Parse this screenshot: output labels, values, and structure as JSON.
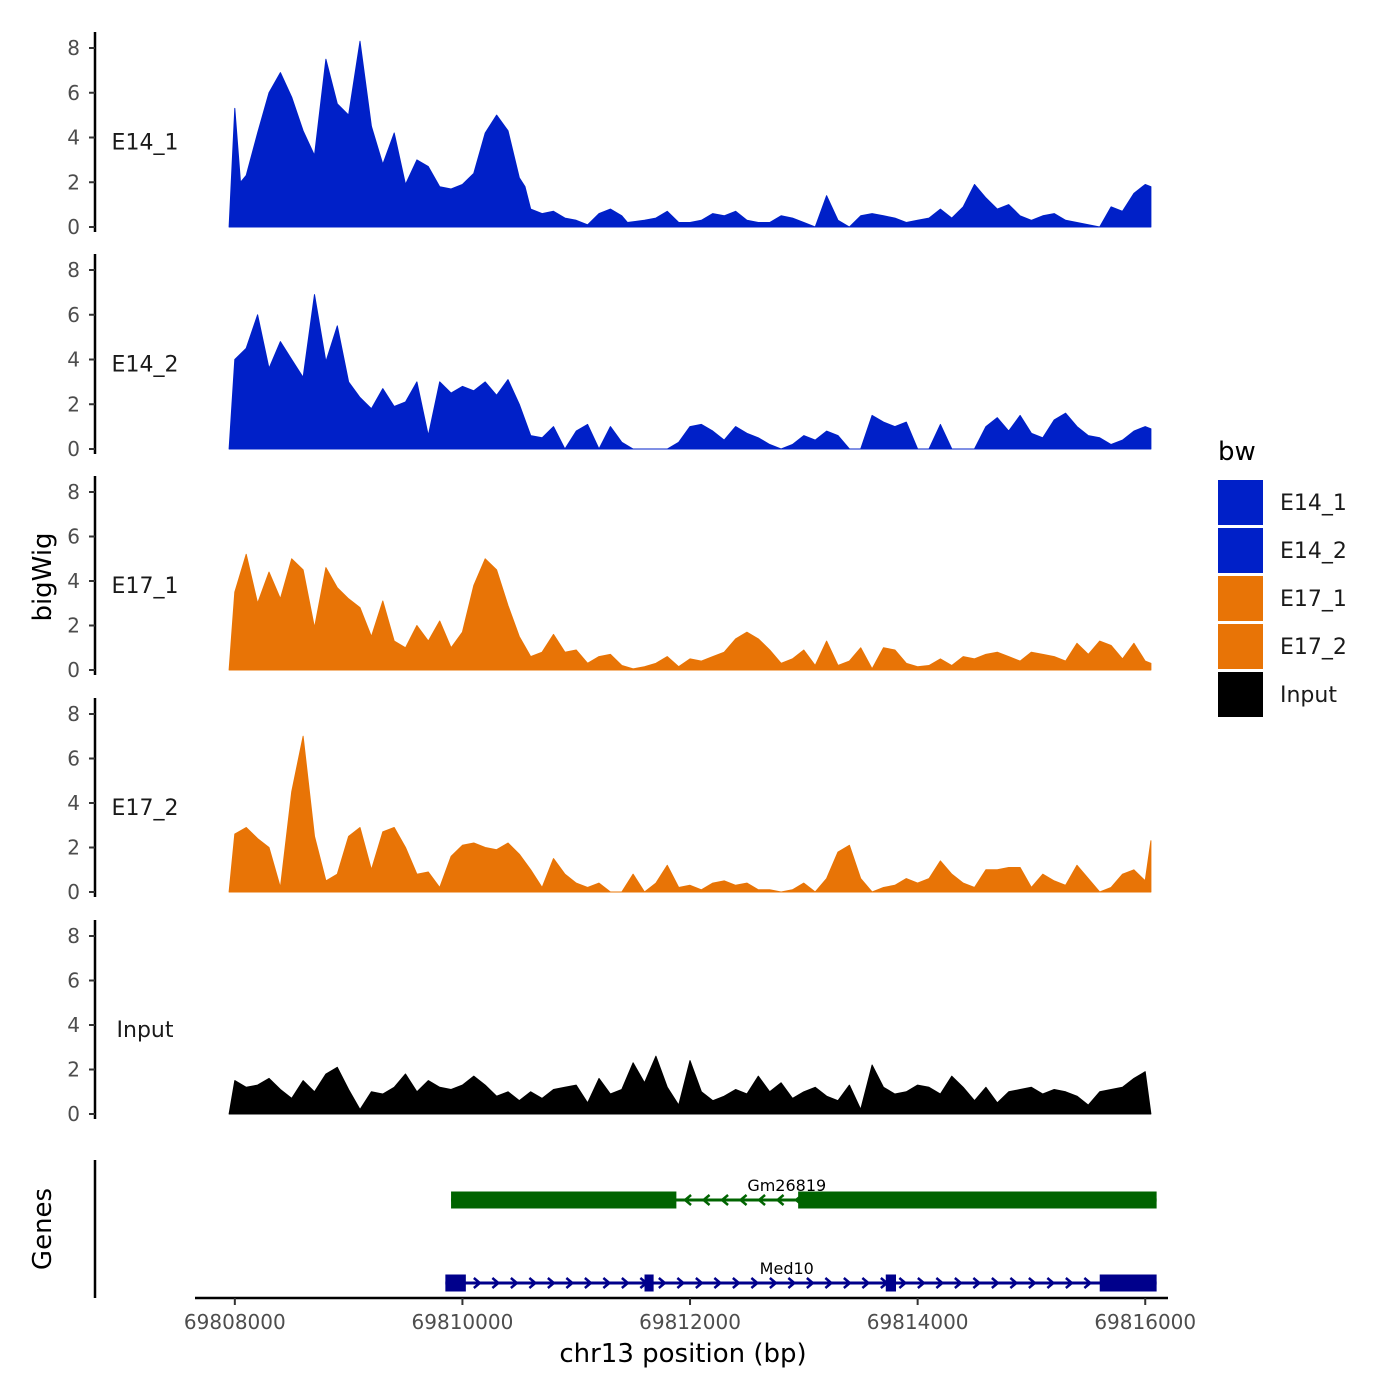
{
  "chart_data": {
    "type": "area",
    "title": "",
    "xlabel": "chr13 position (bp)",
    "ylabel": "bigWig",
    "genes_label": "Genes",
    "xlim": [
      69807650,
      69816200
    ],
    "x_ticks": [
      69808000,
      69810000,
      69812000,
      69814000,
      69816000
    ],
    "x_tick_labels": [
      "69808000",
      "69810000",
      "69812000",
      "69814000",
      "69816000"
    ],
    "ylim": [
      0,
      8.6
    ],
    "y_ticks": [
      0,
      2,
      4,
      6,
      8
    ],
    "y_tick_labels": [
      "0",
      "2",
      "4",
      "6",
      "8"
    ],
    "legend": {
      "title": "bw",
      "position": "right",
      "items": [
        {
          "label": "E14_1",
          "color": "#0020C8"
        },
        {
          "label": "E14_2",
          "color": "#0020C8"
        },
        {
          "label": "E17_1",
          "color": "#E87406"
        },
        {
          "label": "E17_2",
          "color": "#E87406"
        },
        {
          "label": "Input",
          "color": "#000000"
        }
      ]
    },
    "series": [
      {
        "name": "E14_1",
        "label": "E14_1",
        "color": "#0020C8",
        "x": [
          69807950,
          69808000,
          69808050,
          69808100,
          69808200,
          69808300,
          69808400,
          69808500,
          69808600,
          69808700,
          69808800,
          69808900,
          69809000,
          69809100,
          69809200,
          69809300,
          69809400,
          69809500,
          69809600,
          69809700,
          69809800,
          69809900,
          69810000,
          69810100,
          69810200,
          69810300,
          69810400,
          69810500,
          69810550,
          69810600,
          69810700,
          69810800,
          69810900,
          69811000,
          69811100,
          69811200,
          69811300,
          69811400,
          69811450,
          69811600,
          69811700,
          69811800,
          69811900,
          69812000,
          69812100,
          69812200,
          69812300,
          69812400,
          69812500,
          69812600,
          69812700,
          69812800,
          69812900,
          69813000,
          69813100,
          69813200,
          69813300,
          69813400,
          69813500,
          69813600,
          69813700,
          69813800,
          69813900,
          69814000,
          69814100,
          69814200,
          69814300,
          69814400,
          69814500,
          69814600,
          69814700,
          69814800,
          69814900,
          69815000,
          69815100,
          69815200,
          69815300,
          69815400,
          69815500,
          69815600,
          69815700,
          69815800,
          69815900,
          69816000,
          69816050
        ],
        "values": [
          0,
          5.3,
          2.0,
          2.3,
          4.2,
          6.0,
          6.9,
          5.8,
          4.3,
          3.2,
          7.5,
          5.5,
          5.0,
          8.3,
          4.5,
          2.8,
          4.2,
          1.9,
          3.0,
          2.7,
          1.8,
          1.7,
          1.9,
          2.4,
          4.2,
          5.0,
          4.3,
          2.2,
          1.8,
          0.8,
          0.6,
          0.7,
          0.4,
          0.3,
          0.1,
          0.6,
          0.8,
          0.5,
          0.2,
          0.3,
          0.4,
          0.7,
          0.2,
          0.2,
          0.3,
          0.6,
          0.5,
          0.7,
          0.3,
          0.2,
          0.2,
          0.5,
          0.4,
          0.2,
          0,
          1.4,
          0.3,
          0,
          0.5,
          0.6,
          0.5,
          0.4,
          0.2,
          0.3,
          0.4,
          0.8,
          0.4,
          0.9,
          1.9,
          1.3,
          0.8,
          1.0,
          0.5,
          0.3,
          0.5,
          0.6,
          0.3,
          0.2,
          0.1,
          0,
          0.9,
          0.7,
          1.5,
          1.9,
          1.8
        ]
      },
      {
        "name": "E14_2",
        "label": "E14_2",
        "color": "#0020C8",
        "x": [
          69807950,
          69808000,
          69808100,
          69808200,
          69808300,
          69808400,
          69808500,
          69808600,
          69808700,
          69808800,
          69808900,
          69809000,
          69809100,
          69809200,
          69809300,
          69809400,
          69809500,
          69809600,
          69809700,
          69809800,
          69809900,
          69810000,
          69810100,
          69810200,
          69810300,
          69810400,
          69810500,
          69810600,
          69810700,
          69810800,
          69810900,
          69811000,
          69811100,
          69811200,
          69811300,
          69811400,
          69811500,
          69811600,
          69811700,
          69811800,
          69811900,
          69812000,
          69812100,
          69812200,
          69812300,
          69812400,
          69812500,
          69812600,
          69812700,
          69812800,
          69812900,
          69813000,
          69813100,
          69813200,
          69813300,
          69813400,
          69813500,
          69813600,
          69813700,
          69813800,
          69813900,
          69814000,
          69814100,
          69814200,
          69814300,
          69814400,
          69814500,
          69814600,
          69814700,
          69814800,
          69814900,
          69815000,
          69815100,
          69815200,
          69815300,
          69815400,
          69815500,
          69815600,
          69815700,
          69815800,
          69815900,
          69816000,
          69816050
        ],
        "values": [
          0,
          4.0,
          4.5,
          6.0,
          3.6,
          4.8,
          4.0,
          3.2,
          6.9,
          3.9,
          5.5,
          3.0,
          2.3,
          1.8,
          2.7,
          1.9,
          2.1,
          3.0,
          0.6,
          3.0,
          2.5,
          2.8,
          2.6,
          3.0,
          2.4,
          3.1,
          2.0,
          0.6,
          0.5,
          1.0,
          0,
          0.8,
          1.1,
          0,
          1.0,
          0.3,
          0,
          0,
          0,
          0,
          0.3,
          1.0,
          1.1,
          0.8,
          0.4,
          1.0,
          0.7,
          0.5,
          0.2,
          0,
          0.2,
          0.6,
          0.4,
          0.8,
          0.6,
          0,
          0,
          1.5,
          1.2,
          1.0,
          1.2,
          0,
          0,
          1.1,
          0,
          0,
          0,
          1.0,
          1.4,
          0.8,
          1.5,
          0.7,
          0.5,
          1.3,
          1.6,
          1.0,
          0.6,
          0.5,
          0.2,
          0.4,
          0.8,
          1.0,
          0.9
        ]
      },
      {
        "name": "E17_1",
        "label": "E17_1",
        "color": "#E87406",
        "x": [
          69807950,
          69808000,
          69808100,
          69808200,
          69808300,
          69808400,
          69808500,
          69808600,
          69808700,
          69808800,
          69808900,
          69809000,
          69809100,
          69809200,
          69809300,
          69809400,
          69809500,
          69809600,
          69809700,
          69809800,
          69809900,
          69810000,
          69810100,
          69810200,
          69810300,
          69810400,
          69810500,
          69810600,
          69810700,
          69810800,
          69810900,
          69811000,
          69811100,
          69811200,
          69811300,
          69811400,
          69811500,
          69811600,
          69811700,
          69811800,
          69811900,
          69812000,
          69812100,
          69812200,
          69812300,
          69812400,
          69812500,
          69812600,
          69812700,
          69812800,
          69812900,
          69813000,
          69813100,
          69813200,
          69813300,
          69813400,
          69813500,
          69813600,
          69813700,
          69813800,
          69813900,
          69814000,
          69814100,
          69814200,
          69814300,
          69814400,
          69814500,
          69814600,
          69814700,
          69814800,
          69814900,
          69815000,
          69815100,
          69815200,
          69815300,
          69815400,
          69815500,
          69815600,
          69815700,
          69815800,
          69815900,
          69816000,
          69816050
        ],
        "values": [
          0,
          3.5,
          5.2,
          3.0,
          4.4,
          3.2,
          5.0,
          4.5,
          1.9,
          4.6,
          3.7,
          3.2,
          2.8,
          1.5,
          3.1,
          1.3,
          1.0,
          2.0,
          1.3,
          2.2,
          1.0,
          1.7,
          3.8,
          5.0,
          4.5,
          2.9,
          1.5,
          0.6,
          0.8,
          1.6,
          0.8,
          0.9,
          0.3,
          0.6,
          0.7,
          0.2,
          0.05,
          0.15,
          0.3,
          0.6,
          0.15,
          0.5,
          0.4,
          0.6,
          0.8,
          1.4,
          1.7,
          1.4,
          0.9,
          0.3,
          0.5,
          0.9,
          0.2,
          1.3,
          0.2,
          0.4,
          1.0,
          0.05,
          1.0,
          0.9,
          0.3,
          0.15,
          0.2,
          0.5,
          0.2,
          0.6,
          0.5,
          0.7,
          0.8,
          0.6,
          0.4,
          0.8,
          0.7,
          0.6,
          0.4,
          1.2,
          0.7,
          1.3,
          1.1,
          0.5,
          1.2,
          0.4,
          0.3
        ]
      },
      {
        "name": "E17_2",
        "label": "E17_2",
        "color": "#E87406",
        "x": [
          69807950,
          69808000,
          69808100,
          69808200,
          69808300,
          69808400,
          69808500,
          69808600,
          69808700,
          69808800,
          69808900,
          69809000,
          69809100,
          69809200,
          69809300,
          69809400,
          69809500,
          69809600,
          69809700,
          69809800,
          69809900,
          69810000,
          69810100,
          69810200,
          69810300,
          69810400,
          69810500,
          69810600,
          69810700,
          69810800,
          69810900,
          69811000,
          69811100,
          69811200,
          69811300,
          69811400,
          69811500,
          69811600,
          69811700,
          69811800,
          69811900,
          69812000,
          69812100,
          69812200,
          69812300,
          69812400,
          69812500,
          69812600,
          69812700,
          69812800,
          69812900,
          69813000,
          69813100,
          69813200,
          69813300,
          69813400,
          69813500,
          69813600,
          69813700,
          69813800,
          69813900,
          69814000,
          69814100,
          69814200,
          69814300,
          69814400,
          69814500,
          69814600,
          69814700,
          69814800,
          69814900,
          69815000,
          69815100,
          69815200,
          69815300,
          69815400,
          69815500,
          69815600,
          69815700,
          69815800,
          69815900,
          69816000,
          69816050
        ],
        "values": [
          0,
          2.6,
          2.9,
          2.4,
          2.0,
          0.2,
          4.5,
          7.0,
          2.5,
          0.5,
          0.8,
          2.5,
          2.9,
          1.0,
          2.7,
          2.9,
          2.0,
          0.8,
          0.9,
          0.2,
          1.6,
          2.1,
          2.2,
          2.0,
          1.9,
          2.2,
          1.7,
          1.0,
          0.2,
          1.5,
          0.8,
          0.4,
          0.2,
          0.4,
          0,
          0,
          0.8,
          0,
          0.4,
          1.2,
          0.2,
          0.3,
          0.1,
          0.4,
          0.5,
          0.3,
          0.4,
          0.1,
          0.1,
          0,
          0.1,
          0.4,
          0,
          0.6,
          1.8,
          2.1,
          0.6,
          0,
          0.2,
          0.3,
          0.6,
          0.4,
          0.6,
          1.4,
          0.8,
          0.4,
          0.2,
          1.0,
          1.0,
          1.1,
          1.1,
          0.2,
          0.8,
          0.5,
          0.3,
          1.2,
          0.6,
          0,
          0.2,
          0.8,
          1.0,
          0.5,
          2.3
        ]
      },
      {
        "name": "Input",
        "label": "Input",
        "color": "#000000",
        "x": [
          69807950,
          69808000,
          69808100,
          69808200,
          69808300,
          69808400,
          69808500,
          69808600,
          69808700,
          69808800,
          69808900,
          69809000,
          69809100,
          69809200,
          69809300,
          69809400,
          69809500,
          69809600,
          69809700,
          69809800,
          69809900,
          69810000,
          69810100,
          69810200,
          69810300,
          69810400,
          69810500,
          69810600,
          69810700,
          69810800,
          69810900,
          69811000,
          69811100,
          69811200,
          69811300,
          69811400,
          69811500,
          69811600,
          69811700,
          69811800,
          69811900,
          69812000,
          69812100,
          69812200,
          69812300,
          69812400,
          69812500,
          69812600,
          69812700,
          69812800,
          69812900,
          69813000,
          69813100,
          69813200,
          69813300,
          69813400,
          69813500,
          69813600,
          69813700,
          69813800,
          69813900,
          69814000,
          69814100,
          69814200,
          69814300,
          69814400,
          69814500,
          69814600,
          69814700,
          69814800,
          69814900,
          69815000,
          69815100,
          69815200,
          69815300,
          69815400,
          69815500,
          69815600,
          69815700,
          69815800,
          69815900,
          69816000,
          69816050
        ],
        "values": [
          0,
          1.5,
          1.2,
          1.3,
          1.6,
          1.1,
          0.7,
          1.5,
          1.0,
          1.8,
          2.1,
          1.1,
          0.2,
          1.0,
          0.9,
          1.2,
          1.8,
          1.0,
          1.5,
          1.2,
          1.1,
          1.3,
          1.7,
          1.3,
          0.8,
          1.0,
          0.6,
          1.0,
          0.7,
          1.1,
          1.2,
          1.3,
          0.5,
          1.6,
          0.9,
          1.1,
          2.3,
          1.4,
          2.6,
          1.2,
          0.4,
          2.4,
          1.0,
          0.6,
          0.8,
          1.1,
          0.9,
          1.7,
          1.0,
          1.4,
          0.7,
          1.0,
          1.2,
          0.8,
          0.6,
          1.3,
          0.2,
          2.2,
          1.2,
          0.9,
          1.0,
          1.3,
          1.2,
          0.9,
          1.7,
          1.2,
          0.6,
          1.2,
          0.5,
          1.0,
          1.1,
          1.2,
          0.9,
          1.1,
          1.0,
          0.8,
          0.4,
          1.0,
          1.1,
          1.2,
          1.6,
          1.9,
          0
        ]
      }
    ],
    "genes": [
      {
        "name": "Gm26819",
        "color": "#006400",
        "strand": "-",
        "start": 69809900,
        "end": 69816100,
        "exons": [
          [
            69809900,
            69811880
          ],
          [
            69812950,
            69816100
          ]
        ],
        "label_pos": 69812850
      },
      {
        "name": "Med10",
        "color": "#00008B",
        "strand": "+",
        "start": 69809850,
        "end": 69816100,
        "exons": [
          [
            69809850,
            69810030
          ],
          [
            69811600,
            69811680
          ],
          [
            69813720,
            69813810
          ],
          [
            69815600,
            69816100
          ]
        ],
        "label_pos": 69812850
      }
    ]
  }
}
